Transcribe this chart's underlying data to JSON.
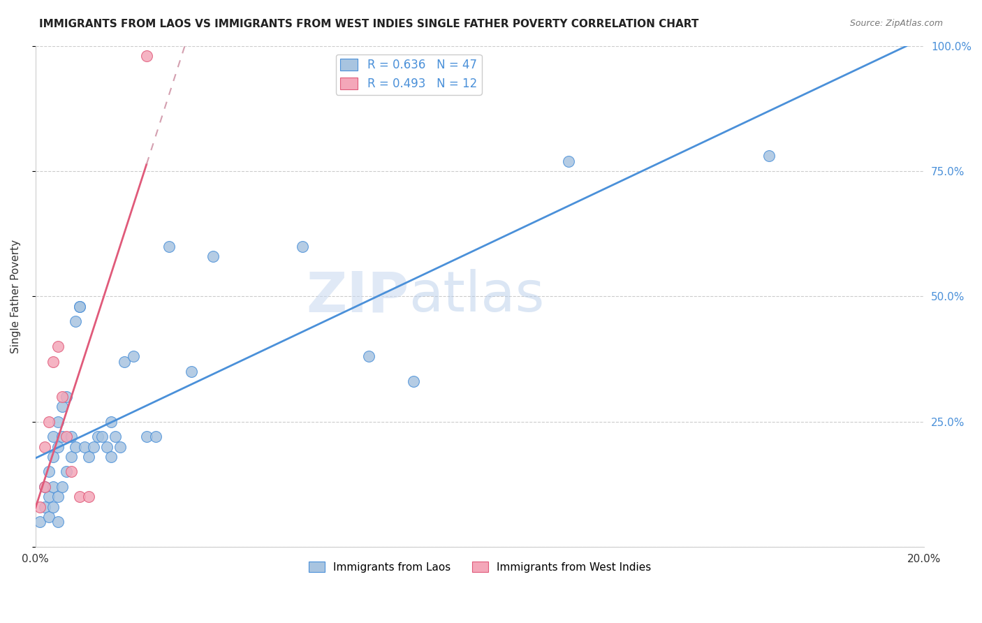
{
  "title": "IMMIGRANTS FROM LAOS VS IMMIGRANTS FROM WEST INDIES SINGLE FATHER POVERTY CORRELATION CHART",
  "source": "Source: ZipAtlas.com",
  "xlabel_laos": "Immigrants from Laos",
  "xlabel_wi": "Immigrants from West Indies",
  "ylabel": "Single Father Poverty",
  "xlim": [
    0.0,
    0.2
  ],
  "ylim": [
    0.0,
    1.0
  ],
  "ytick_values": [
    0.0,
    0.25,
    0.5,
    0.75,
    1.0
  ],
  "ytick_labels": [
    "",
    "25.0%",
    "50.0%",
    "75.0%",
    "100.0%"
  ],
  "xtick_values": [
    0.0,
    0.04,
    0.08,
    0.12,
    0.16,
    0.2
  ],
  "xtick_labels": [
    "0.0%",
    "",
    "",
    "",
    "",
    "20.0%"
  ],
  "laos_R": 0.636,
  "laos_N": 47,
  "wi_R": 0.493,
  "wi_N": 12,
  "laos_color": "#a8c4e0",
  "wi_color": "#f4a7b9",
  "laos_line_color": "#4a90d9",
  "wi_line_color": "#e05a7a",
  "wi_dashed_color": "#d4a0b0",
  "watermark_zip": "ZIP",
  "watermark_atlas": "atlas",
  "laos_x": [
    0.001,
    0.002,
    0.002,
    0.003,
    0.003,
    0.003,
    0.004,
    0.004,
    0.004,
    0.004,
    0.005,
    0.005,
    0.005,
    0.005,
    0.006,
    0.006,
    0.006,
    0.007,
    0.007,
    0.008,
    0.008,
    0.009,
    0.009,
    0.01,
    0.01,
    0.011,
    0.012,
    0.013,
    0.014,
    0.015,
    0.016,
    0.017,
    0.017,
    0.018,
    0.019,
    0.02,
    0.022,
    0.025,
    0.027,
    0.03,
    0.035,
    0.04,
    0.06,
    0.075,
    0.085,
    0.12,
    0.165
  ],
  "laos_y": [
    0.05,
    0.08,
    0.12,
    0.06,
    0.1,
    0.15,
    0.08,
    0.12,
    0.18,
    0.22,
    0.05,
    0.1,
    0.2,
    0.25,
    0.12,
    0.22,
    0.28,
    0.15,
    0.3,
    0.18,
    0.22,
    0.2,
    0.45,
    0.48,
    0.48,
    0.2,
    0.18,
    0.2,
    0.22,
    0.22,
    0.2,
    0.25,
    0.18,
    0.22,
    0.2,
    0.37,
    0.38,
    0.22,
    0.22,
    0.6,
    0.35,
    0.58,
    0.6,
    0.38,
    0.33,
    0.77,
    0.78
  ],
  "wi_x": [
    0.001,
    0.002,
    0.002,
    0.003,
    0.004,
    0.005,
    0.006,
    0.007,
    0.008,
    0.01,
    0.012,
    0.025
  ],
  "wi_y": [
    0.08,
    0.12,
    0.2,
    0.25,
    0.37,
    0.4,
    0.3,
    0.22,
    0.15,
    0.1,
    0.1,
    0.98
  ]
}
